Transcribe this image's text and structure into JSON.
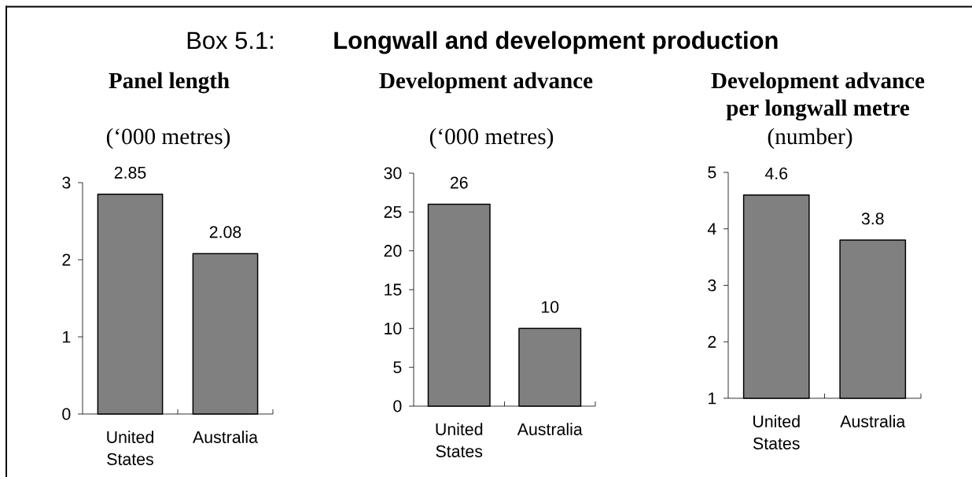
{
  "chart_data": [
    {
      "type": "bar",
      "title": "Panel length",
      "subtitle": "(‘000 metres)",
      "annotations": [
        "Box 5.1:",
        "Longwall and development production"
      ],
      "categories": [
        "United States",
        "Australia"
      ],
      "values": [
        2.85,
        2.08
      ],
      "color": "#808080",
      "ylim": [
        0,
        3
      ],
      "yticks": [
        0,
        1,
        2,
        3
      ],
      "data_labels": true
    },
    {
      "type": "bar",
      "title": "Development advance",
      "subtitle": "(‘000 metres)",
      "categories": [
        "United States",
        "Australia"
      ],
      "values": [
        26,
        10
      ],
      "color": "#808080",
      "ylim": [
        0,
        30
      ],
      "yticks": [
        0,
        5,
        10,
        15,
        20,
        25,
        30
      ],
      "data_labels": true
    },
    {
      "type": "bar",
      "title": "Development advance per longwall metre",
      "subtitle": "(number)",
      "categories": [
        "United States",
        "Australia"
      ],
      "values": [
        4.6,
        3.8
      ],
      "color": "#808080",
      "ylim": [
        1,
        5
      ],
      "yticks": [
        1,
        2,
        3,
        4,
        5
      ],
      "data_labels": true
    }
  ]
}
